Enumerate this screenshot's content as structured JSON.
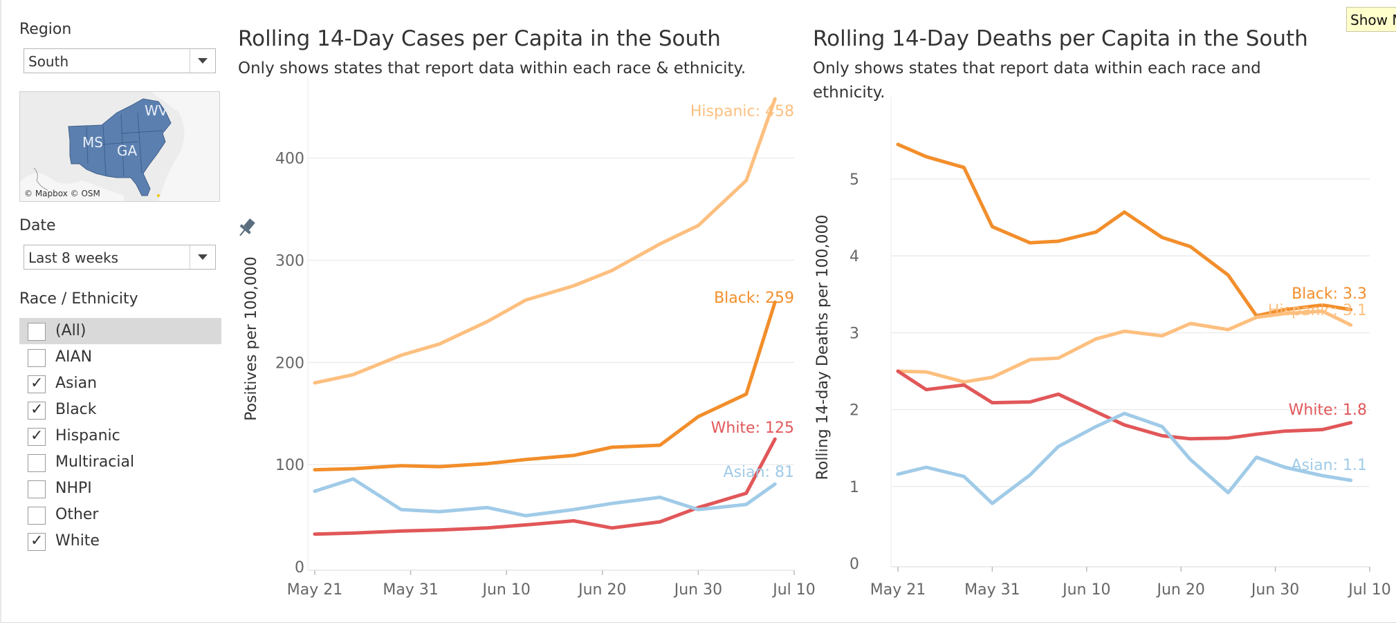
{
  "sidebar": {
    "region": {
      "label": "Region",
      "value": "South"
    },
    "map": {
      "labels": [
        "WV",
        "MS",
        "GA"
      ],
      "credit": "© Mapbox © OSM"
    },
    "date": {
      "label": "Date",
      "value": "Last 8 weeks"
    },
    "race": {
      "label": "Race / Ethnicity",
      "items": [
        {
          "label": "(All)",
          "checked": false
        },
        {
          "label": "AIAN",
          "checked": false
        },
        {
          "label": "Asian",
          "checked": true
        },
        {
          "label": "Black",
          "checked": true
        },
        {
          "label": "Hispanic",
          "checked": true
        },
        {
          "label": "Multiracial",
          "checked": false
        },
        {
          "label": "NHPI",
          "checked": false
        },
        {
          "label": "Other",
          "checked": false
        },
        {
          "label": "White",
          "checked": true
        }
      ]
    }
  },
  "tooltip": {
    "text": "Show Me"
  },
  "colors": {
    "Hispanic": "#fdbf7f",
    "Black": "#f28e2b",
    "White": "#e15759",
    "Asian": "#a0cbe8"
  },
  "chart_data": [
    {
      "type": "line",
      "title": "Rolling 14-Day Cases per Capita in the South",
      "subtitle": "Only shows states that report data within each race & ethnicity.",
      "ylabel": "Positives per 100,000",
      "ylim": [
        0,
        460
      ],
      "yticks": [
        0,
        100,
        200,
        300,
        400
      ],
      "xticks": [
        "May 21",
        "May 31",
        "Jun 10",
        "Jun 20",
        "Jun 30",
        "Jul 10"
      ],
      "xlim": [
        0,
        50
      ],
      "x": [
        0,
        4,
        9,
        13,
        18,
        22,
        27,
        31,
        36,
        40,
        45,
        48
      ],
      "x_dates": [
        "May 21",
        "May 25",
        "May 30",
        "Jun 3",
        "Jun 8",
        "Jun 12",
        "Jun 17",
        "Jun 21",
        "Jun 26",
        "Jun 30",
        "Jul 5",
        "Jul 8"
      ],
      "series": [
        {
          "name": "Hispanic",
          "end_label": "Hispanic: 458",
          "values": [
            180,
            188,
            207,
            218,
            240,
            261,
            275,
            290,
            316,
            334,
            378,
            458
          ]
        },
        {
          "name": "Black",
          "end_label": "Black: 259",
          "values": [
            95,
            96,
            99,
            98,
            101,
            105,
            109,
            117,
            119,
            147,
            169,
            259
          ]
        },
        {
          "name": "White",
          "end_label": "White: 125",
          "values": [
            32,
            33,
            35,
            36,
            38,
            41,
            45,
            38,
            44,
            58,
            72,
            125
          ]
        },
        {
          "name": "Asian",
          "end_label": "Asian: 81",
          "values": [
            74,
            86,
            56,
            54,
            58,
            50,
            56,
            62,
            68,
            56,
            61,
            81
          ]
        }
      ],
      "grid": true
    },
    {
      "type": "line",
      "title": "Rolling 14-Day Deaths per Capita in the South",
      "subtitle": "Only shows states that report data within each race and ethnicity.",
      "ylabel": "Rolling 14-day Deaths per 100,000",
      "ylim": [
        0,
        5.8
      ],
      "yticks": [
        0,
        1,
        2,
        3,
        4,
        5
      ],
      "xticks": [
        "May 21",
        "May 31",
        "Jun 10",
        "Jun 20",
        "Jun 30",
        "Jul 10"
      ],
      "xlim": [
        0,
        50
      ],
      "x": [
        0,
        3,
        7,
        10,
        14,
        17,
        21,
        24,
        28,
        31,
        35,
        38,
        41,
        45,
        48
      ],
      "x_dates": [
        "May 21",
        "May 24",
        "May 28",
        "May 31",
        "Jun 4",
        "Jun 7",
        "Jun 11",
        "Jun 14",
        "Jun 18",
        "Jun 21",
        "Jun 25",
        "Jun 28",
        "Jul 1",
        "Jul 5",
        "Jul 8"
      ],
      "series": [
        {
          "name": "Black",
          "end_label": "Black: 3.3",
          "values": [
            5.45,
            5.29,
            5.15,
            4.38,
            4.17,
            4.19,
            4.31,
            4.57,
            4.24,
            4.12,
            3.75,
            3.22,
            3.3,
            3.36,
            3.3
          ]
        },
        {
          "name": "Hispanic",
          "end_label": "Hispanic: 3.1",
          "values": [
            2.5,
            2.49,
            2.36,
            2.42,
            2.65,
            2.67,
            2.92,
            3.02,
            2.96,
            3.12,
            3.04,
            3.2,
            3.25,
            3.28,
            3.1
          ]
        },
        {
          "name": "White",
          "end_label": "White: 1.8",
          "values": [
            2.5,
            2.26,
            2.32,
            2.09,
            2.1,
            2.2,
            1.97,
            1.8,
            1.66,
            1.62,
            1.63,
            1.68,
            1.72,
            1.74,
            1.83
          ]
        },
        {
          "name": "Asian",
          "end_label": "Asian: 1.1",
          "values": [
            1.16,
            1.25,
            1.13,
            0.78,
            1.15,
            1.52,
            1.78,
            1.95,
            1.78,
            1.35,
            0.92,
            1.38,
            1.25,
            1.14,
            1.08
          ]
        }
      ],
      "grid": true
    }
  ]
}
